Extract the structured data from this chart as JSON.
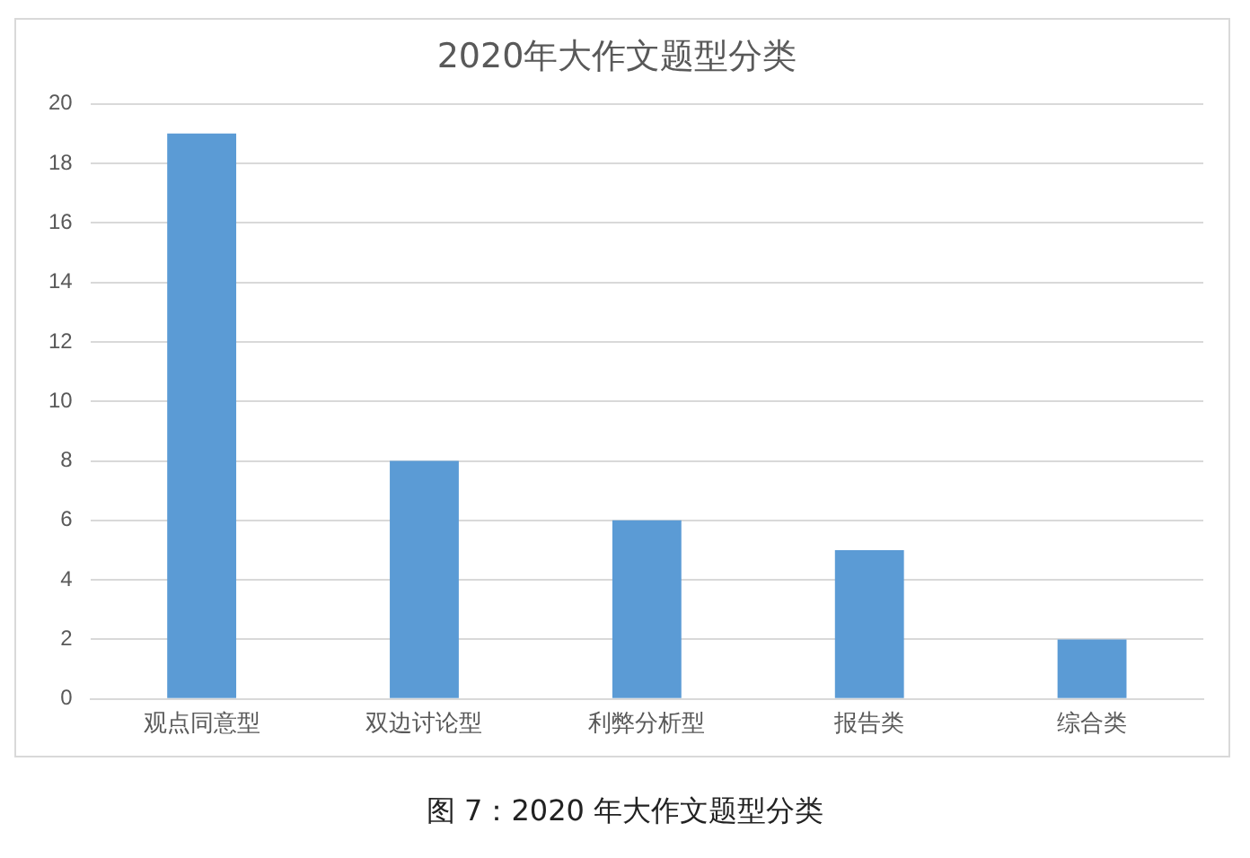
{
  "chart_data": {
    "type": "bar",
    "title": "2020年大作文题型分类",
    "categories": [
      "观点同意型",
      "双边讨论型",
      "利弊分析型",
      "报告类",
      "综合类"
    ],
    "values": [
      19,
      8,
      6,
      5,
      2
    ],
    "color": "#5b9bd5",
    "ylim": [
      0,
      20
    ],
    "yticks": [
      0,
      2,
      4,
      6,
      8,
      10,
      12,
      14,
      16,
      18,
      20
    ],
    "grid": "y",
    "annotations": [
      "图 7：2020 年大作文题型分类"
    ]
  }
}
